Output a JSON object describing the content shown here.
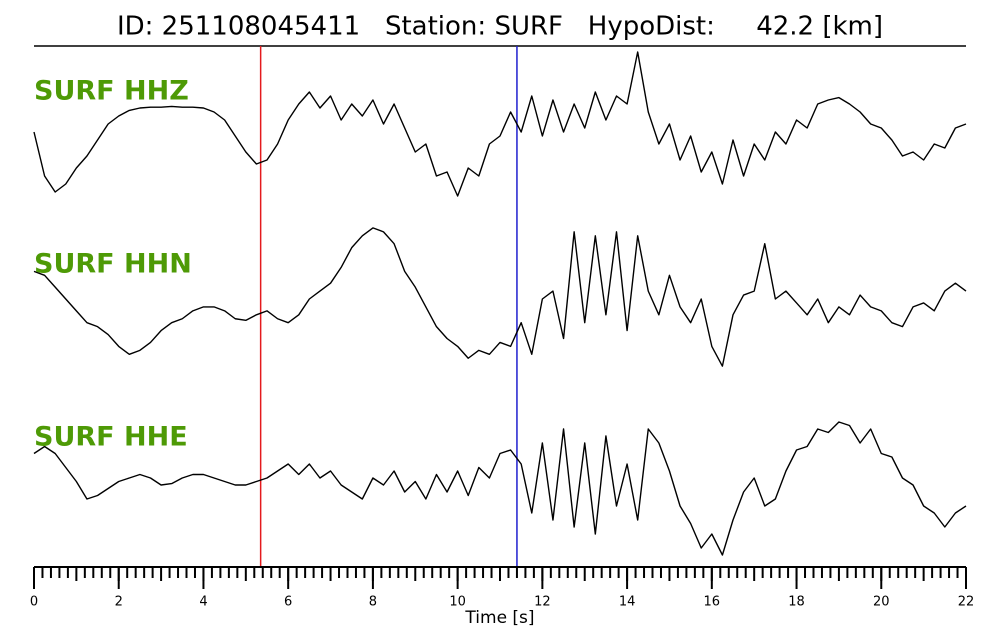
{
  "chart_data": {
    "type": "line",
    "title": "ID: 251108045411   Station: SURF   HypoDist:     42.2 [km]",
    "xlabel": "Time [s]",
    "xlim": [
      0,
      22
    ],
    "xticks": [
      0,
      2,
      4,
      6,
      8,
      10,
      12,
      14,
      16,
      18,
      20,
      22
    ],
    "xminor_step": 0.2,
    "ylim": [
      -1,
      1
    ],
    "label_color": "#4e9a06",
    "markers": [
      {
        "x": 5.35,
        "color": "#e41a1c"
      },
      {
        "x": 11.4,
        "color": "#1f1fcf"
      }
    ],
    "x": [
      0,
      0.25,
      0.5,
      0.75,
      1,
      1.25,
      1.5,
      1.75,
      2,
      2.25,
      2.5,
      2.75,
      3,
      3.25,
      3.5,
      3.75,
      4,
      4.25,
      4.5,
      4.75,
      5,
      5.25,
      5.5,
      5.75,
      6,
      6.25,
      6.5,
      6.75,
      7,
      7.25,
      7.5,
      7.75,
      8,
      8.25,
      8.5,
      8.75,
      9,
      9.25,
      9.5,
      9.75,
      10,
      10.25,
      10.5,
      10.75,
      11,
      11.25,
      11.5,
      11.75,
      12,
      12.25,
      12.5,
      12.75,
      13,
      13.25,
      13.5,
      13.75,
      14,
      14.25,
      14.5,
      14.75,
      15,
      15.25,
      15.5,
      15.75,
      16,
      16.25,
      16.5,
      16.75,
      17,
      17.25,
      17.5,
      17.75,
      18,
      18.25,
      18.5,
      18.75,
      19,
      19.25,
      19.5,
      19.75,
      20,
      20.25,
      20.5,
      20.75,
      21,
      21.25,
      21.5,
      21.75,
      22
    ],
    "series": [
      {
        "name": "SURF HHZ",
        "color": "#000000",
        "values": [
          -0.05,
          -0.6,
          -0.8,
          -0.7,
          -0.5,
          -0.35,
          -0.15,
          0.05,
          0.15,
          0.22,
          0.25,
          0.26,
          0.26,
          0.27,
          0.26,
          0.26,
          0.25,
          0.2,
          0.1,
          -0.1,
          -0.3,
          -0.45,
          -0.4,
          -0.2,
          0.1,
          0.3,
          0.45,
          0.25,
          0.4,
          0.1,
          0.3,
          0.15,
          0.35,
          0.05,
          0.3,
          0.0,
          -0.3,
          -0.2,
          -0.6,
          -0.55,
          -0.85,
          -0.5,
          -0.6,
          -0.2,
          -0.1,
          0.2,
          -0.05,
          0.4,
          -0.1,
          0.35,
          -0.05,
          0.3,
          0.0,
          0.45,
          0.1,
          0.4,
          0.3,
          0.95,
          0.2,
          -0.2,
          0.05,
          -0.4,
          -0.1,
          -0.55,
          -0.3,
          -0.7,
          -0.15,
          -0.6,
          -0.2,
          -0.4,
          -0.05,
          -0.2,
          0.1,
          0.0,
          0.3,
          0.35,
          0.38,
          0.3,
          0.2,
          0.05,
          0.0,
          -0.15,
          -0.35,
          -0.3,
          -0.4,
          -0.2,
          -0.25,
          0.0,
          0.05
        ]
      },
      {
        "name": "SURF HHN",
        "color": "#000000",
        "values": [
          0.35,
          0.3,
          0.15,
          0.0,
          -0.15,
          -0.3,
          -0.35,
          -0.45,
          -0.6,
          -0.7,
          -0.65,
          -0.55,
          -0.4,
          -0.3,
          -0.25,
          -0.15,
          -0.1,
          -0.1,
          -0.15,
          -0.25,
          -0.27,
          -0.2,
          -0.15,
          -0.25,
          -0.3,
          -0.2,
          0.0,
          0.1,
          0.2,
          0.4,
          0.65,
          0.8,
          0.9,
          0.85,
          0.7,
          0.35,
          0.15,
          -0.1,
          -0.35,
          -0.5,
          -0.6,
          -0.75,
          -0.65,
          -0.7,
          -0.55,
          -0.6,
          -0.3,
          -0.7,
          0.0,
          0.1,
          -0.5,
          0.85,
          -0.3,
          0.8,
          -0.2,
          0.85,
          -0.4,
          0.8,
          0.1,
          -0.2,
          0.3,
          -0.1,
          -0.3,
          0.0,
          -0.6,
          -0.85,
          -0.2,
          0.05,
          0.1,
          0.7,
          0.0,
          0.1,
          -0.05,
          -0.2,
          0.0,
          -0.3,
          -0.1,
          -0.2,
          0.05,
          -0.1,
          -0.15,
          -0.3,
          -0.35,
          -0.1,
          -0.05,
          -0.15,
          0.1,
          0.2,
          0.1
        ]
      },
      {
        "name": "SURF HHE",
        "color": "#000000",
        "values": [
          0.45,
          0.55,
          0.45,
          0.25,
          0.05,
          -0.2,
          -0.15,
          -0.05,
          0.05,
          0.1,
          0.15,
          0.1,
          0.0,
          0.02,
          0.1,
          0.15,
          0.15,
          0.1,
          0.05,
          0.0,
          0.0,
          0.05,
          0.1,
          0.2,
          0.3,
          0.15,
          0.3,
          0.1,
          0.2,
          0.0,
          -0.1,
          -0.2,
          0.1,
          0.0,
          0.2,
          -0.1,
          0.05,
          -0.2,
          0.15,
          -0.1,
          0.2,
          -0.15,
          0.25,
          0.1,
          0.45,
          0.5,
          0.3,
          -0.4,
          0.6,
          -0.5,
          0.8,
          -0.6,
          0.6,
          -0.7,
          0.7,
          -0.3,
          0.3,
          -0.5,
          0.8,
          0.6,
          0.2,
          -0.3,
          -0.55,
          -0.9,
          -0.7,
          -1.0,
          -0.5,
          -0.1,
          0.1,
          -0.3,
          -0.2,
          0.2,
          0.5,
          0.55,
          0.8,
          0.75,
          0.9,
          0.85,
          0.6,
          0.8,
          0.45,
          0.4,
          0.1,
          0.0,
          -0.3,
          -0.4,
          -0.6,
          -0.4,
          -0.3
        ]
      }
    ]
  }
}
